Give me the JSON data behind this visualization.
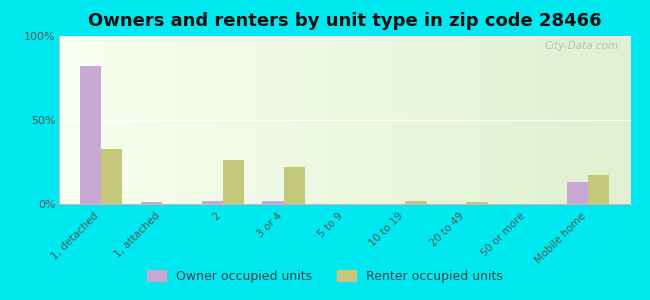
{
  "title": "Owners and renters by unit type in zip code 28466",
  "categories": [
    "1, detached",
    "1, attached",
    "2",
    "3 or 4",
    "5 to 9",
    "10 to 19",
    "20 to 49",
    "50 or more",
    "Mobile home"
  ],
  "owner_values": [
    82,
    1,
    2,
    2,
    0,
    0,
    0,
    0,
    13
  ],
  "renter_values": [
    33,
    0,
    26,
    22,
    0,
    2,
    1,
    0,
    17
  ],
  "owner_color": "#c9a8d4",
  "renter_color": "#c5c87a",
  "outer_bg": "#00e8f0",
  "plot_bg_top": "#e0f0d0",
  "plot_bg_bottom": "#f8fff0",
  "ylim": [
    0,
    100
  ],
  "yticks": [
    0,
    50,
    100
  ],
  "ytick_labels": [
    "0%",
    "50%",
    "100%"
  ],
  "bar_width": 0.35,
  "legend_owner": "Owner occupied units",
  "legend_renter": "Renter occupied units",
  "watermark": "City-Data.com",
  "title_fontsize": 13,
  "tick_fontsize": 7.5,
  "legend_fontsize": 9
}
